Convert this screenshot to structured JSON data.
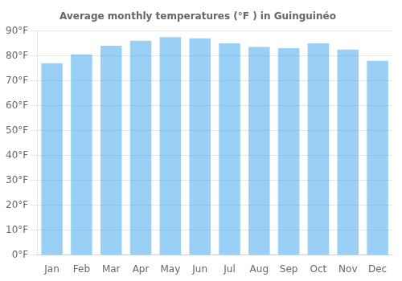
{
  "chart_data": {
    "type": "bar",
    "title": "Average monthly temperatures (°F ) in Guinguinéo",
    "categories": [
      "Jan",
      "Feb",
      "Mar",
      "Apr",
      "May",
      "Jun",
      "Jul",
      "Aug",
      "Sep",
      "Oct",
      "Nov",
      "Dec"
    ],
    "values": [
      77,
      80.5,
      84,
      86,
      87.5,
      87,
      85,
      83.5,
      83,
      85,
      82.5,
      78
    ],
    "ylim": [
      0,
      90
    ],
    "yticks": [
      {
        "value": 0,
        "label": "0°F"
      },
      {
        "value": 10,
        "label": "10°F"
      },
      {
        "value": 20,
        "label": "20°F"
      },
      {
        "value": 30,
        "label": "30°F"
      },
      {
        "value": 40,
        "label": "40°F"
      },
      {
        "value": 50,
        "label": "50°F"
      },
      {
        "value": 60,
        "label": "60°F"
      },
      {
        "value": 70,
        "label": "70°F"
      },
      {
        "value": 80,
        "label": "80°F"
      },
      {
        "value": 90,
        "label": "90°F"
      }
    ],
    "grid": true
  }
}
